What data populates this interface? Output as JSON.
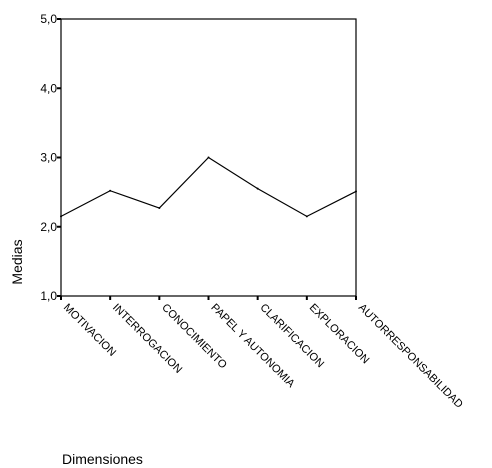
{
  "chart_data": {
    "type": "line",
    "title": "",
    "xlabel": "Dimensiones",
    "ylabel": "Medias",
    "categories": [
      "MOTIVACION",
      "INTERROGACION",
      "CONOCIMIENTO",
      "PAPEL Y AUTONOMIA",
      "CLARIFICACION",
      "EXPLORACION",
      "AUTORRESPONSABILIDAD"
    ],
    "series": [
      {
        "values": [
          2.15,
          2.52,
          2.27,
          3.0,
          2.55,
          2.15,
          2.51
        ]
      }
    ],
    "ylim": [
      1.0,
      5.0
    ],
    "y_ticks": [
      "1,0",
      "2,0",
      "3,0",
      "4,0",
      "5,0"
    ],
    "grid": false,
    "colors": {
      "line": "#000000",
      "axis": "#000000",
      "background": "#ffffff"
    }
  }
}
